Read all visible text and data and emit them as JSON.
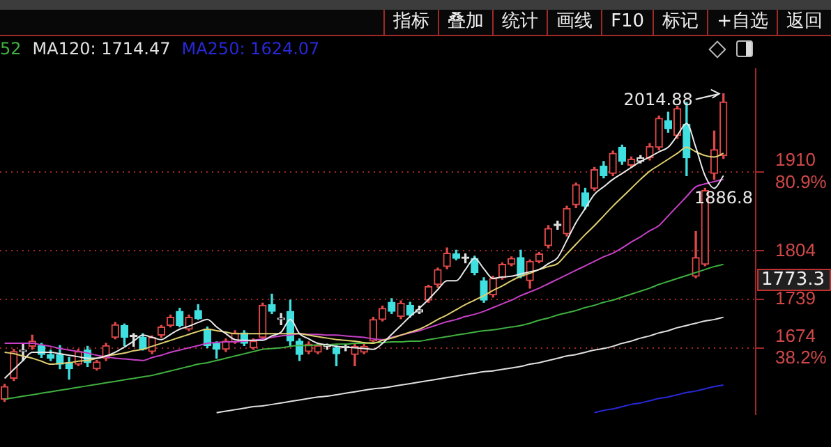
{
  "chart_data": {
    "type": "candlestick",
    "categories": [
      null,
      null,
      null,
      null,
      null,
      null,
      null,
      null,
      null,
      null,
      null,
      null,
      null,
      null,
      null,
      null,
      null,
      null,
      null,
      null,
      null,
      null,
      null,
      null,
      null,
      null,
      null,
      null,
      null,
      null,
      null,
      null,
      null,
      null,
      null,
      null,
      null,
      null,
      null,
      null,
      null,
      null,
      null,
      null,
      null,
      null,
      null,
      null,
      null,
      null,
      null,
      null,
      null,
      null,
      null,
      null,
      null,
      null,
      null,
      null,
      null,
      null,
      null,
      null,
      null,
      null,
      null,
      null,
      null,
      null,
      null,
      null,
      null,
      null,
      null,
      null,
      null,
      null,
      null,
      null,
      null,
      null
    ],
    "ohlc": [
      [
        1605,
        1625,
        1602,
        1622
      ],
      [
        1633,
        1672,
        1630,
        1669
      ],
      [
        1669,
        1680,
        1657,
        1670
      ],
      [
        1676,
        1691,
        1672,
        1683
      ],
      [
        1677,
        1680,
        1661,
        1665
      ],
      [
        1665,
        1671,
        1657,
        1660
      ],
      [
        1665,
        1677,
        1646,
        1652
      ],
      [
        1654,
        1661,
        1632,
        1646
      ],
      [
        1652,
        1672,
        1650,
        1669
      ],
      [
        1671,
        1676,
        1649,
        1654
      ],
      [
        1646,
        1657,
        1644,
        1655
      ],
      [
        1660,
        1680,
        1657,
        1677
      ],
      [
        1688,
        1708,
        1686,
        1705
      ],
      [
        1704,
        1706,
        1677,
        1688
      ],
      [
        1690,
        1693,
        1676,
        1689
      ],
      [
        1688,
        1693,
        1671,
        1672
      ],
      [
        1669,
        1690,
        1666,
        1688
      ],
      [
        1691,
        1704,
        1688,
        1702
      ],
      [
        1704,
        1718,
        1702,
        1715
      ],
      [
        1723,
        1727,
        1702,
        1704
      ],
      [
        1699,
        1718,
        1697,
        1715
      ],
      [
        1724,
        1732,
        1712,
        1713
      ],
      [
        1699,
        1702,
        1674,
        1677
      ],
      [
        1680,
        1682,
        1660,
        1672
      ],
      [
        1672,
        1686,
        1669,
        1683
      ],
      [
        1682,
        1697,
        1680,
        1694
      ],
      [
        1694,
        1697,
        1677,
        1680
      ],
      [
        1674,
        1686,
        1672,
        1683
      ],
      [
        1688,
        1734,
        1686,
        1731
      ],
      [
        1732,
        1746,
        1720,
        1723
      ],
      [
        1712,
        1720,
        1705,
        1713
      ],
      [
        1723,
        1738,
        1676,
        1683
      ],
      [
        1683,
        1686,
        1657,
        1665
      ],
      [
        1669,
        1682,
        1666,
        1679
      ],
      [
        1668,
        1680,
        1666,
        1677
      ],
      [
        1676,
        1679,
        1672,
        1677
      ],
      [
        1674,
        1677,
        1650,
        1666
      ],
      [
        1674,
        1678,
        1670,
        1675
      ],
      [
        1665,
        1679,
        1650,
        1676
      ],
      [
        1668,
        1680,
        1666,
        1676
      ],
      [
        1683,
        1715,
        1680,
        1712
      ],
      [
        1712,
        1730,
        1710,
        1727
      ],
      [
        1735,
        1740,
        1720,
        1723
      ],
      [
        1716,
        1737,
        1713,
        1734
      ],
      [
        1731,
        1735,
        1715,
        1718
      ],
      [
        1722,
        1730,
        1720,
        1725
      ],
      [
        1738,
        1758,
        1735,
        1756
      ],
      [
        1759,
        1781,
        1755,
        1779
      ],
      [
        1783,
        1808,
        1780,
        1801
      ],
      [
        1800,
        1805,
        1792,
        1794
      ],
      [
        1794,
        1800,
        1788,
        1794
      ],
      [
        1794,
        1797,
        1772,
        1775
      ],
      [
        1764,
        1768,
        1735,
        1738
      ],
      [
        1745,
        1770,
        1742,
        1767
      ],
      [
        1768,
        1788,
        1766,
        1786
      ],
      [
        1786,
        1796,
        1784,
        1794
      ],
      [
        1795,
        1805,
        1768,
        1770
      ],
      [
        1764,
        1792,
        1754,
        1790
      ],
      [
        1790,
        1802,
        1788,
        1800
      ],
      [
        1811,
        1838,
        1808,
        1834
      ],
      [
        1838,
        1844,
        1833,
        1838
      ],
      [
        1827,
        1864,
        1824,
        1861
      ],
      [
        1866,
        1895,
        1862,
        1893
      ],
      [
        1882,
        1888,
        1860,
        1864
      ],
      [
        1888,
        1916,
        1885,
        1913
      ],
      [
        1918,
        1924,
        1902,
        1905
      ],
      [
        1908,
        1938,
        1905,
        1935
      ],
      [
        1943,
        1946,
        1920,
        1924
      ],
      [
        1919,
        1930,
        1916,
        1927
      ],
      [
        1924,
        1932,
        1922,
        1929
      ],
      [
        1929,
        1948,
        1926,
        1944
      ],
      [
        1943,
        1985,
        1940,
        1982
      ],
      [
        1979,
        1990,
        1963,
        1968
      ],
      [
        1959,
        1998,
        1955,
        1995
      ],
      [
        1974,
        2003,
        1905,
        1929
      ],
      [
        1770,
        1830,
        1768,
        1795
      ],
      [
        1786,
        1888,
        1784,
        1885
      ],
      [
        1908,
        1965,
        1900,
        1940
      ],
      [
        1932,
        2014.88,
        1928,
        2004
      ],
      null,
      null,
      null
    ],
    "colors": [
      "#e04848",
      "#e04848",
      "#e0e0e0",
      "#e04848",
      "#40e0e0",
      "#40e0e0",
      "#40e0e0",
      "#40e0e0",
      "#e04848",
      "#40e0e0",
      "#e04848",
      "#e04848",
      "#e04848",
      "#40e0e0",
      "#e0e0e0",
      "#40e0e0",
      "#e04848",
      "#e04848",
      "#e04848",
      "#40e0e0",
      "#e04848",
      "#40e0e0",
      "#40e0e0",
      "#40e0e0",
      "#e04848",
      "#e04848",
      "#40e0e0",
      "#e04848",
      "#e04848",
      "#40e0e0",
      "#e0e0e0",
      "#40e0e0",
      "#40e0e0",
      "#e04848",
      "#e04848",
      "#e0e0e0",
      "#40e0e0",
      "#e0e0e0",
      "#e04848",
      "#e04848",
      "#e04848",
      "#e04848",
      "#40e0e0",
      "#e04848",
      "#40e0e0",
      "#e0e0e0",
      "#e04848",
      "#e04848",
      "#e04848",
      "#40e0e0",
      "#e0e0e0",
      "#40e0e0",
      "#40e0e0",
      "#e04848",
      "#e04848",
      "#e04848",
      "#40e0e0",
      "#e04848",
      "#e04848",
      "#e04848",
      "#e0e0e0",
      "#e04848",
      "#e04848",
      "#40e0e0",
      "#e04848",
      "#40e0e0",
      "#e04848",
      "#40e0e0",
      "#e04848",
      "#e0e0e0",
      "#e04848",
      "#e04848",
      "#40e0e0",
      "#e04848",
      "#40e0e0",
      "#e04848",
      "#e04848",
      "#e04848",
      "#e04848",
      null,
      null,
      null
    ],
    "series": [
      {
        "type": "line",
        "color": "#e8e8e8",
        "values": [
          1633,
          1645,
          1657,
          1668,
          1668,
          1668,
          1666,
          1664,
          1662,
          1660,
          1660,
          1663,
          1668,
          1675,
          1683,
          1691,
          1688,
          1685,
          1692,
          1699,
          1703,
          1708,
          1712,
          1702,
          1693,
          1685,
          1684,
          1684,
          1684,
          1690,
          1695,
          1712,
          1693,
          1686,
          1680,
          1678,
          1676,
          1675,
          1674,
          1673,
          1672,
          1680,
          1692,
          1704,
          1716,
          1727,
          1739,
          1752,
          1764,
          1764,
          1779,
          1794,
          1780,
          1767,
          1769,
          1770,
          1773,
          1776,
          1779,
          1787,
          1795,
          1818,
          1842,
          1861,
          1880,
          1890,
          1900,
          1908,
          1916,
          1924,
          1930,
          1937,
          1943,
          1959,
          1975,
          1943,
          1905,
          1888,
          1905,
          null,
          null,
          null
        ]
      },
      {
        "type": "line",
        "color": "#e0d070",
        "values": [
          1668,
          1666,
          1663,
          1660,
          1656,
          1652,
          1653,
          1654,
          1656,
          1657,
          1660,
          1663,
          1665,
          1667,
          1670,
          1672,
          1676,
          1680,
          1684,
          1688,
          1692,
          1696,
          1699,
          1697,
          1695,
          1693,
          1693,
          1693,
          1693,
          1693,
          1693,
          1693,
          1693,
          1691,
          1689,
          1687,
          1685,
          1684,
          1683,
          1681,
          1680,
          1684,
          1687,
          1691,
          1695,
          1699,
          1705,
          1712,
          1718,
          1725,
          1732,
          1738,
          1744,
          1751,
          1757,
          1764,
          1770,
          1774,
          1779,
          1783,
          1787,
          1800,
          1813,
          1826,
          1838,
          1851,
          1864,
          1876,
          1888,
          1900,
          1911,
          1919,
          1927,
          1935,
          1943,
          1937,
          1932,
          1930,
          1935,
          null,
          null,
          null
        ]
      },
      {
        "type": "line",
        "color": "#c840c8",
        "values": [
          1680,
          1680,
          1680,
          1680,
          1678,
          1676,
          1673,
          1671,
          1669,
          1667,
          1664,
          1662,
          1660,
          1659,
          1658,
          1657,
          1661,
          1664,
          1668,
          1671,
          1674,
          1677,
          1680,
          1681,
          1682,
          1682,
          1683,
          1684,
          1686,
          1688,
          1690,
          1691,
          1693,
          1692,
          1692,
          1691,
          1691,
          1690,
          1689,
          1688,
          1686,
          1685,
          1688,
          1691,
          1694,
          1697,
          1701,
          1705,
          1709,
          1712,
          1716,
          1719,
          1723,
          1728,
          1733,
          1738,
          1744,
          1749,
          1754,
          1760,
          1766,
          1772,
          1778,
          1784,
          1790,
          1796,
          1801,
          1808,
          1816,
          1823,
          1831,
          1838,
          1851,
          1864,
          1877,
          1890,
          1894,
          1897,
          1900,
          null,
          null,
          null
        ]
      },
      {
        "type": "line",
        "name": "52",
        "color": "#40b040",
        "values": [
          1605,
          1607,
          1609,
          1611,
          1613,
          1615,
          1617,
          1619,
          1621,
          1623,
          1625,
          1627,
          1629,
          1631,
          1633,
          1635,
          1637,
          1640,
          1643,
          1646,
          1649,
          1652,
          1654,
          1657,
          1660,
          1663,
          1666,
          1669,
          1672,
          1673,
          1674,
          1676,
          1677,
          1677,
          1678,
          1678,
          1679,
          1679,
          1680,
          1680,
          1681,
          1681,
          1682,
          1682,
          1683,
          1683,
          1685,
          1687,
          1689,
          1691,
          1693,
          1695,
          1697,
          1698,
          1700,
          1702,
          1704,
          1707,
          1711,
          1714,
          1718,
          1721,
          1724,
          1728,
          1731,
          1735,
          1738,
          1742,
          1746,
          1750,
          1754,
          1759,
          1763,
          1767,
          1771,
          1775,
          1779,
          1783,
          1786,
          null,
          null,
          null
        ]
      },
      {
        "type": "line",
        "name": "MA120: 1714.47",
        "color": "#e0e0e0",
        "values": [
          null,
          null,
          null,
          null,
          null,
          null,
          null,
          null,
          null,
          null,
          null,
          null,
          null,
          null,
          null,
          null,
          null,
          null,
          null,
          null,
          null,
          null,
          null,
          1587,
          1589,
          1591,
          1593,
          1595,
          1596,
          1598,
          1600,
          1602,
          1604,
          1606,
          1608,
          1609,
          1611,
          1613,
          1615,
          1617,
          1619,
          1620,
          1622,
          1624,
          1626,
          1628,
          1630,
          1632,
          1634,
          1636,
          1638,
          1640,
          1642,
          1643,
          1645,
          1647,
          1649,
          1652,
          1654,
          1657,
          1660,
          1663,
          1665,
          1668,
          1671,
          1673,
          1676,
          1680,
          1683,
          1687,
          1690,
          1694,
          1697,
          1701,
          1704,
          1707,
          1710,
          1712,
          1715,
          null,
          null,
          null
        ]
      },
      {
        "type": "line",
        "name": "MA250: 1624.07",
        "color": "#2828d8",
        "values": [
          null,
          null,
          null,
          null,
          null,
          null,
          null,
          null,
          null,
          null,
          null,
          null,
          null,
          null,
          null,
          null,
          null,
          null,
          null,
          null,
          null,
          null,
          null,
          null,
          null,
          null,
          null,
          null,
          null,
          null,
          null,
          null,
          null,
          null,
          null,
          null,
          null,
          null,
          null,
          null,
          null,
          null,
          null,
          null,
          null,
          null,
          null,
          null,
          null,
          null,
          null,
          null,
          null,
          null,
          null,
          null,
          null,
          null,
          null,
          null,
          null,
          null,
          null,
          null,
          1587,
          1590,
          1592,
          1595,
          1598,
          1600,
          1603,
          1606,
          1608,
          1611,
          1614,
          1616,
          1619,
          1622,
          1624,
          null,
          null,
          null
        ]
      }
    ],
    "ylim": [
      1585,
      2048
    ],
    "yticks": [
      {
        "value": 1910,
        "label": "1910\n80.9%"
      },
      1804,
      1739,
      {
        "value": 1674,
        "label": "1674\n38.2%"
      }
    ],
    "grid": "y",
    "tick_labels": "y",
    "legend": "top left",
    "marker": "none",
    "annotations": [
      "指标",
      "叠加",
      "统计",
      "画线",
      "F10",
      "标记",
      "+自选",
      "返回",
      "2014.88",
      "1886.8",
      "1773.3"
    ]
  }
}
